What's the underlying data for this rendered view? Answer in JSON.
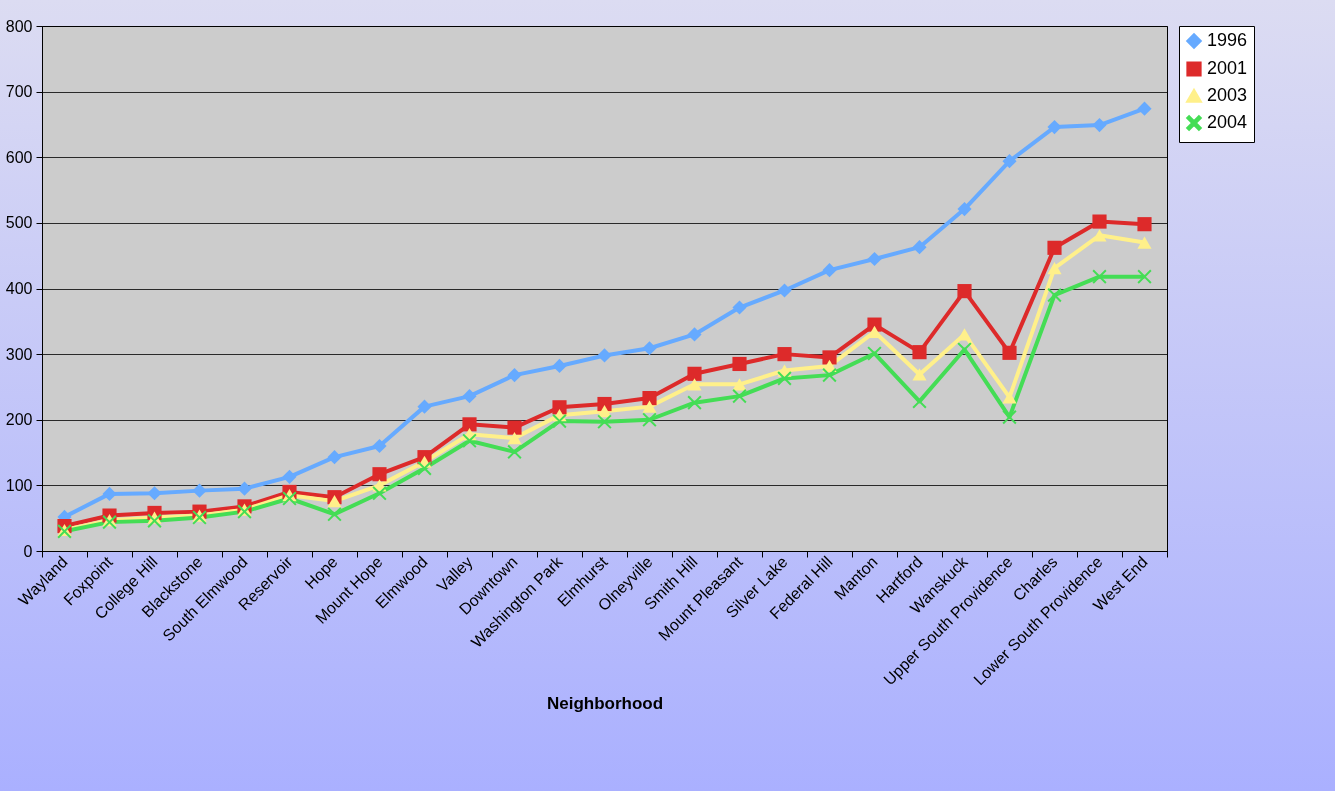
{
  "chart_data": {
    "type": "line",
    "xlabel": "Neighborhood",
    "categories": [
      "Wayland",
      "Foxpoint",
      "College Hill",
      "Blackstone",
      "South Elmwood",
      "Reservoir",
      "Hope",
      "Mount Hope",
      "Elmwood",
      "Valley",
      "Downtown",
      "Washington Park",
      "Elmhurst",
      "Olneyville",
      "Smith Hill",
      "Mount Pleasant",
      "Silver Lake",
      "Federal Hill",
      "Manton",
      "Hartford",
      "Wanskuck",
      "Upper South Providence",
      "Charles",
      "Lower South Providence",
      "West End"
    ],
    "series": [
      {
        "name": "1996",
        "color": "#66aaff",
        "marker": "diamond",
        "values": [
          52,
          87,
          88,
          92,
          95,
          113,
          143,
          160,
          220,
          236,
          268,
          282,
          298,
          309,
          330,
          371,
          397,
          428,
          445,
          463,
          521,
          594,
          646,
          649,
          674
        ]
      },
      {
        "name": "2001",
        "color": "#dd2a2a",
        "marker": "square",
        "values": [
          38,
          54,
          58,
          60,
          68,
          90,
          82,
          117,
          143,
          193,
          188,
          219,
          224,
          233,
          270,
          285,
          300,
          295,
          345,
          303,
          396,
          302,
          462,
          502,
          498
        ]
      },
      {
        "name": "2003",
        "color": "#fff08a",
        "marker": "triangle",
        "values": [
          32,
          47,
          51,
          54,
          63,
          85,
          76,
          100,
          136,
          178,
          172,
          207,
          213,
          220,
          254,
          254,
          275,
          282,
          334,
          269,
          330,
          234,
          431,
          481,
          470
        ]
      },
      {
        "name": "2004",
        "color": "#44dd55",
        "marker": "cross",
        "values": [
          30,
          44,
          46,
          51,
          60,
          80,
          56,
          88,
          126,
          168,
          151,
          198,
          197,
          200,
          226,
          236,
          263,
          268,
          301,
          228,
          307,
          204,
          390,
          418,
          418
        ]
      }
    ],
    "ylim": [
      0,
      800
    ],
    "yticks": [
      0,
      100,
      200,
      300,
      400,
      500,
      600,
      700,
      800
    ],
    "grid": "y",
    "legend": "right",
    "line_style": "solid"
  }
}
